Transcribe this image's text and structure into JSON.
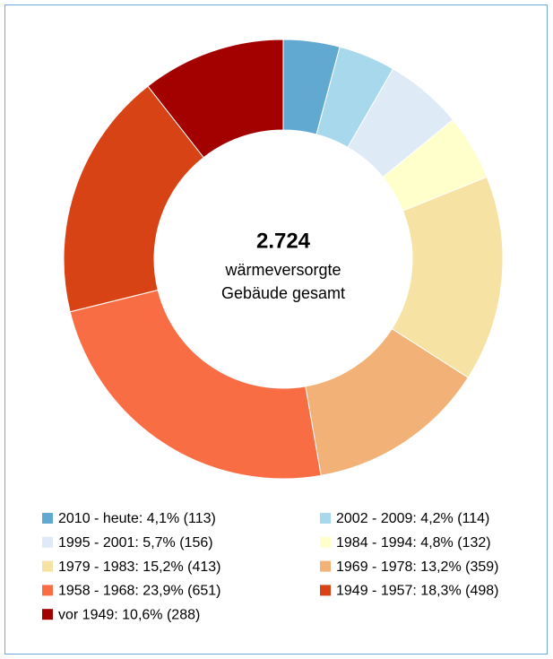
{
  "chart_data": {
    "type": "donut",
    "center_label": "2.724",
    "center_text": [
      "wärmeversorgte",
      "Gebäude gesamt"
    ],
    "categories": [
      "2010 - heute: 4,1% (113)",
      "2002 - 2009: 4,2% (114)",
      "1995 - 2001: 5,7% (156)",
      "1984 - 1994: 4,8% (132)",
      "1979 - 1983: 15,2% (413)",
      "1969 - 1978: 13,2% (359)",
      "1958 - 1968: 23,9% (651)",
      "1949 - 1957: 18,3% (498)",
      "vor 1949: 10,6% (288)"
    ],
    "values": [
      113,
      114,
      156,
      132,
      413,
      359,
      651,
      498,
      288
    ],
    "colors": [
      "#62a9d2",
      "#a8d8ec",
      "#deebf7",
      "#ffffcc",
      "#f6e2a2",
      "#f2b176",
      "#f96d45",
      "#d84315",
      "#a30000"
    ],
    "legend": "bottom"
  }
}
